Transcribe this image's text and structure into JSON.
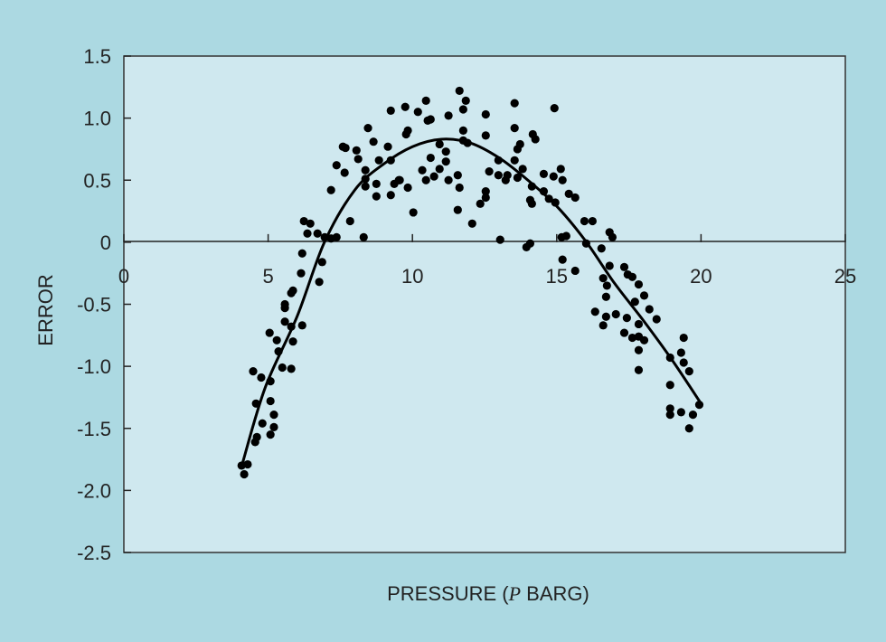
{
  "chart_data": {
    "type": "scatter",
    "title": "",
    "xlabel": "PRESSURE (P BARG)",
    "xlabel_parts": [
      "PRESSURE (",
      "P",
      " BARG)"
    ],
    "ylabel": "ERROR",
    "xlim": [
      0,
      25
    ],
    "ylim": [
      -2.5,
      1.5
    ],
    "x_ticks": [
      0,
      5,
      10,
      15,
      20,
      25
    ],
    "x_tick_labels": [
      "0",
      "5",
      "10",
      "15",
      "20",
      "25"
    ],
    "y_ticks": [
      1.5,
      1.0,
      0.5,
      0,
      -0.5,
      -1.0,
      -1.5,
      -2.0,
      -2.5
    ],
    "y_tick_labels": [
      "1.5",
      "1.0",
      "0.5",
      "0",
      "-0.5",
      "-1.0",
      "-1.5",
      "-2.0",
      "-2.5"
    ],
    "grid": false,
    "legend": "none",
    "colors": {
      "background": "#acd9e2",
      "plot_area": "#cfe8ef",
      "points": "#000000",
      "curve": "#000000"
    },
    "points": {
      "x": [
        6.18,
        6.87,
        6.14,
        6.77,
        5.8,
        5.86,
        5.58,
        5.58,
        5.58,
        5.8,
        6.18,
        5.05,
        5.3,
        5.86,
        5.36,
        4.48,
        5.49,
        5.8,
        4.76,
        5.08,
        4.58,
        5.08,
        5.2,
        4.8,
        5.2,
        4.61,
        5.08,
        4.55,
        4.08,
        4.29,
        4.17,
        9.25,
        9.75,
        9.78,
        9.84,
        8.46,
        8.65,
        9.15,
        7.59,
        7.68,
        8.06,
        8.12,
        8.84,
        9.25,
        7.37,
        7.65,
        8.37,
        8.37,
        8.37,
        8.75,
        8.75,
        9.25,
        9.37,
        9.53,
        9.84,
        7.18,
        7.84,
        10.03,
        6.24,
        6.46,
        6.36,
        6.71,
        6.96,
        7.37,
        7.18,
        8.31,
        11.63,
        11.85,
        11.76,
        10.47,
        10.19,
        10.63,
        10.53,
        11.25,
        12.54,
        13.54,
        14.92,
        11.76,
        13.54,
        12.54,
        14.17,
        14.26,
        10.94,
        11.76,
        11.91,
        13.73,
        13.64,
        11.16,
        10.63,
        11.16,
        12.98,
        13.54,
        10.94,
        10.34,
        10.47,
        10.75,
        11.57,
        11.25,
        12.66,
        12.98,
        13.29,
        13.23,
        13.82,
        13.64,
        14.55,
        15.14,
        14.89,
        15.2,
        9.56,
        11.63,
        14.14,
        14.55,
        12.54,
        12.54,
        15.42,
        15.64,
        14.08,
        14.14,
        14.73,
        14.95,
        12.35,
        11.57,
        12.07,
        15.96,
        16.24,
        16.83,
        16.93,
        15.33,
        15.17,
        13.04,
        13.95,
        14.08,
        16.02,
        16.55,
        15.2,
        16.83,
        15.64,
        17.34,
        17.46,
        17.62,
        16.61,
        16.74,
        17.84,
        18.03,
        16.71,
        17.71,
        18.21,
        16.33,
        17.05,
        16.71,
        17.43,
        18.46,
        17.84,
        16.61,
        17.34,
        17.62,
        17.84,
        18.03,
        19.4,
        19.31,
        17.84,
        18.93,
        19.4,
        19.59,
        17.84,
        18.93,
        19.94,
        18.93,
        18.93,
        19.31,
        19.72,
        19.59
      ],
      "y": [
        -0.09,
        -0.16,
        -0.25,
        -0.32,
        -0.41,
        -0.39,
        -0.5,
        -0.53,
        -0.64,
        -0.68,
        -0.67,
        -0.73,
        -0.79,
        -0.8,
        -0.88,
        -1.04,
        -1.01,
        -1.02,
        -1.09,
        -1.12,
        -1.3,
        -1.28,
        -1.39,
        -1.46,
        -1.49,
        -1.57,
        -1.55,
        -1.61,
        -1.8,
        -1.79,
        -1.87,
        1.06,
        1.09,
        0.87,
        0.9,
        0.92,
        0.81,
        0.77,
        0.77,
        0.76,
        0.74,
        0.67,
        0.66,
        0.66,
        0.62,
        0.56,
        0.58,
        0.51,
        0.45,
        0.47,
        0.37,
        0.38,
        0.47,
        0.5,
        0.44,
        0.42,
        0.17,
        0.24,
        0.17,
        0.15,
        0.07,
        0.07,
        0.04,
        0.04,
        0.03,
        0.04,
        1.22,
        1.14,
        1.07,
        1.14,
        1.05,
        0.99,
        0.98,
        1.02,
        1.03,
        1.12,
        1.08,
        0.9,
        0.92,
        0.86,
        0.87,
        0.83,
        0.79,
        0.82,
        0.8,
        0.79,
        0.75,
        0.73,
        0.68,
        0.65,
        0.66,
        0.66,
        0.59,
        0.58,
        0.5,
        0.53,
        0.54,
        0.5,
        0.57,
        0.54,
        0.54,
        0.5,
        0.59,
        0.52,
        0.55,
        0.59,
        0.53,
        0.5,
        0.5,
        0.44,
        0.45,
        0.41,
        0.41,
        0.36,
        0.39,
        0.36,
        0.34,
        0.31,
        0.35,
        0.32,
        0.31,
        0.26,
        0.15,
        0.17,
        0.17,
        0.08,
        0.04,
        0.05,
        0.04,
        0.02,
        -0.04,
        -0.01,
        -0.01,
        -0.05,
        -0.14,
        -0.19,
        -0.23,
        -0.2,
        -0.26,
        -0.28,
        -0.29,
        -0.35,
        -0.34,
        -0.43,
        -0.44,
        -0.48,
        -0.54,
        -0.56,
        -0.58,
        -0.6,
        -0.61,
        -0.62,
        -0.66,
        -0.67,
        -0.73,
        -0.77,
        -0.76,
        -0.79,
        -0.77,
        -0.89,
        -0.87,
        -0.93,
        -0.97,
        -1.04,
        -1.03,
        -1.15,
        -1.31,
        -1.34,
        -1.39,
        -1.37,
        -1.39,
        -1.5
      ]
    },
    "fit_curve": {
      "x": [
        4.1,
        4.9,
        6,
        6.95,
        8,
        9,
        10,
        11,
        12,
        13,
        14,
        15,
        16,
        17,
        18,
        19,
        20
      ],
      "y": [
        -1.79,
        -1.17,
        -0.6,
        0,
        0.42,
        0.63,
        0.77,
        0.83,
        0.8,
        0.68,
        0.5,
        0.29,
        0.01,
        -0.33,
        -0.63,
        -0.95,
        -1.3
      ]
    }
  }
}
